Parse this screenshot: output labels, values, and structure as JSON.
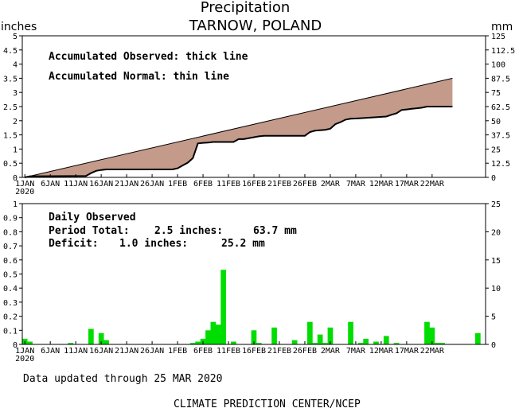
{
  "chart_data": [
    {
      "type": "area",
      "title": "Precipitation",
      "subtitle": "TARNOW, POLAND",
      "ylabel_left": "inches",
      "ylabel_right": "mm",
      "ylim": [
        0,
        5
      ],
      "y_ticks_left": [
        "0",
        "0.5",
        "1",
        "1.5",
        "2",
        "2.5",
        "3",
        "3.5",
        "4",
        "4.5",
        "5"
      ],
      "y_ticks_right": [
        "0",
        "12.5",
        "25",
        "37.5",
        "50",
        "62.5",
        "75",
        "87.5",
        "100",
        "112.5",
        "125"
      ],
      "x_ticks": [
        "1JAN",
        "6JAN",
        "11JAN",
        "16JAN",
        "21JAN",
        "26JAN",
        "1FEB",
        "6FEB",
        "11FEB",
        "16FEB",
        "21FEB",
        "26FEB",
        "2MAR",
        "7MAR",
        "12MAR",
        "17MAR",
        "22MAR"
      ],
      "year_label": "2020",
      "annotations": [
        "Accumulated Observed: thick line",
        "Accumulated Normal: thin line"
      ],
      "series": [
        {
          "role": "normal",
          "x": [
            1,
            85
          ],
          "y": [
            0.0,
            3.5
          ]
        },
        {
          "role": "observed",
          "x": [
            1,
            2,
            3,
            13,
            14,
            15,
            16,
            17,
            30,
            31,
            32,
            33,
            34,
            35,
            36,
            37,
            38,
            42,
            43,
            44,
            47,
            48,
            56,
            57,
            58,
            60,
            61,
            62,
            63,
            64,
            65,
            66,
            67,
            72,
            73,
            74,
            75,
            76,
            77,
            78,
            79,
            80,
            85
          ],
          "y": [
            0.0,
            0.04,
            0.04,
            0.05,
            0.15,
            0.23,
            0.26,
            0.28,
            0.28,
            0.32,
            0.42,
            0.52,
            0.68,
            1.2,
            1.22,
            1.23,
            1.25,
            1.25,
            1.35,
            1.35,
            1.45,
            1.47,
            1.47,
            1.6,
            1.65,
            1.68,
            1.72,
            1.88,
            1.95,
            2.04,
            2.07,
            2.08,
            2.09,
            2.15,
            2.21,
            2.26,
            2.38,
            2.4,
            2.42,
            2.44,
            2.46,
            2.5,
            2.5
          ]
        }
      ],
      "colors": {
        "deficit_fill": "#c49a8b",
        "line": "#000000"
      }
    },
    {
      "type": "bar",
      "ylabel_left": "inches",
      "ylabel_right": "mm",
      "ylim": [
        0,
        1
      ],
      "y_ticks_left": [
        "0",
        "0.1",
        "0.2",
        "0.3",
        "0.4",
        "0.5",
        "0.6",
        "0.7",
        "0.8",
        "0.9",
        "1"
      ],
      "y_ticks_right": [
        "0",
        "5",
        "10",
        "15",
        "20",
        "25"
      ],
      "x_ticks": [
        "1JAN",
        "6JAN",
        "11JAN",
        "16JAN",
        "21JAN",
        "26JAN",
        "1FEB",
        "6FEB",
        "11FEB",
        "16FEB",
        "21FEB",
        "26FEB",
        "2MAR",
        "7MAR",
        "12MAR",
        "17MAR",
        "22MAR"
      ],
      "year_label": "2020",
      "stats": {
        "heading": "Daily Observed",
        "total_label": "Period Total:",
        "total_in": "2.5 inches:",
        "total_mm": "63.7 mm",
        "deficit_label": "Deficit:",
        "deficit_in": "1.0 inches:",
        "deficit_mm": "25.2 mm"
      },
      "x": [
        1,
        2,
        10,
        14,
        16,
        17,
        34,
        35,
        36,
        37,
        38,
        39,
        40,
        42,
        46,
        47,
        50,
        54,
        57,
        58,
        59,
        60,
        61,
        65,
        67,
        68,
        70,
        72,
        74,
        80,
        81,
        82,
        83,
        90
      ],
      "values": [
        0.04,
        0.02,
        0.01,
        0.11,
        0.08,
        0.03,
        0.01,
        0.02,
        0.04,
        0.1,
        0.16,
        0.14,
        0.53,
        0.02,
        0.1,
        0.01,
        0.12,
        0.03,
        0.16,
        0.01,
        0.07,
        0.01,
        0.12,
        0.16,
        0.01,
        0.04,
        0.02,
        0.06,
        0.01,
        0.16,
        0.12,
        0.01,
        0.01,
        0.08
      ],
      "colors": {
        "bar": "#00dd00"
      }
    }
  ],
  "footer": {
    "updated": "Data updated through 25 MAR 2020",
    "credit": "CLIMATE PREDICTION CENTER/NCEP"
  }
}
